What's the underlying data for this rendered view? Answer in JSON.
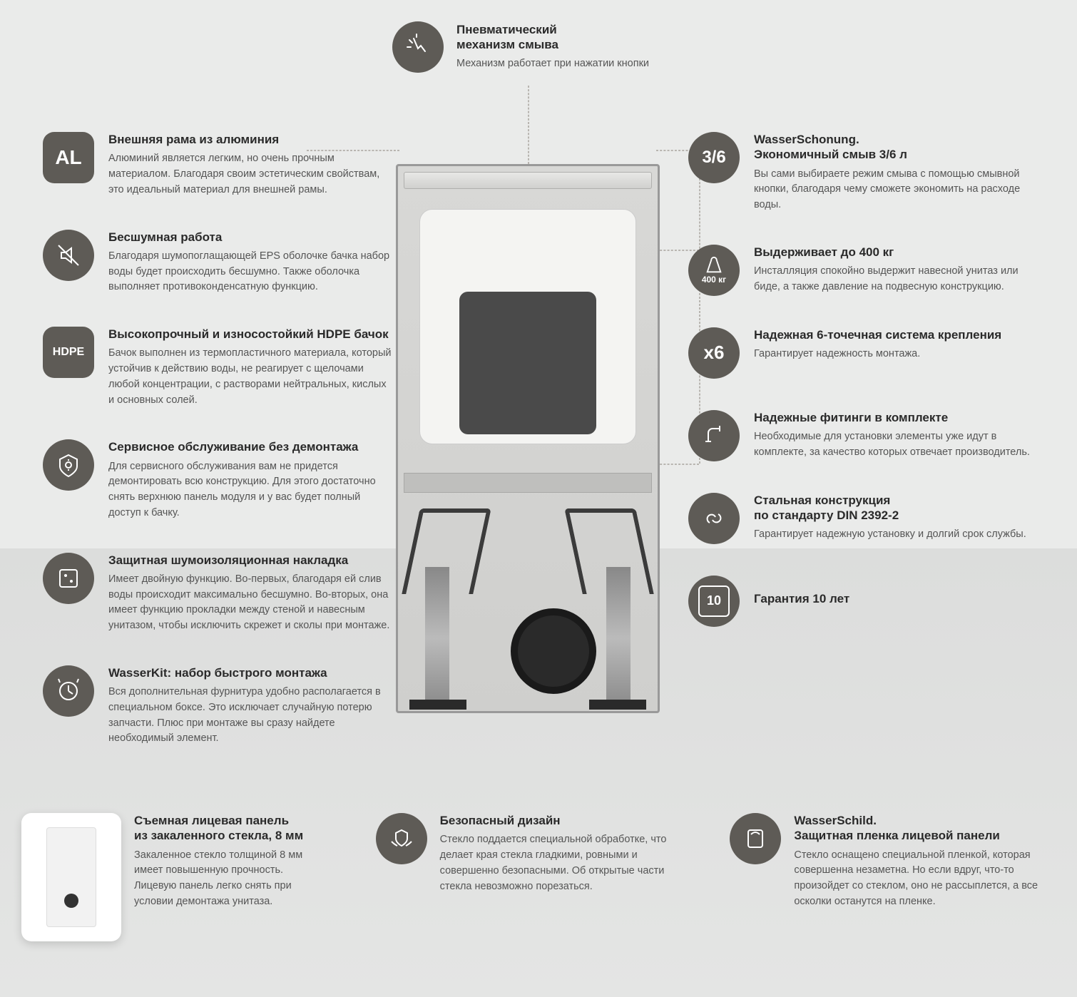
{
  "colors": {
    "icon_bg": "#5e5b56",
    "icon_fg": "#ffffff",
    "title": "#2a2a2a",
    "body": "#555555",
    "bg_top": "#eaebea",
    "bg_bottom": "#e4e5e4"
  },
  "top": {
    "title": "Пневматический\nмеханизм смыва",
    "body": "Механизм работает при нажатии кнопки",
    "icon": "click-icon"
  },
  "left": [
    {
      "icon": "AL",
      "icon_kind": "text-sq",
      "title": "Внешняя рама из алюминия",
      "body": "Алюминий является легким, но очень прочным материалом. Благодаря своим эстетическим свойствам, это идеальный материал для внешней рамы."
    },
    {
      "icon": "mute-icon",
      "icon_kind": "svg",
      "title": "Бесшумная работа",
      "body": "Благодаря шумопоглащающей EPS оболочке бачка набор воды будет происходить бесшумно. Также оболочка выполняет противоконденсатную функцию."
    },
    {
      "icon": "HDPE",
      "icon_kind": "text-sq",
      "title": "Высокопрочный и износостойкий HDPE бачок",
      "body": "Бачок выполнен из термопластичного материала, который устойчив к действию воды, не реагирует с щелочами любой концентрации, с растворами нейтральных, кислых и основных солей."
    },
    {
      "icon": "service-icon",
      "icon_kind": "svg",
      "title": "Сервисное обслуживание без демонтажа",
      "body": "Для сервисного обслуживания вам не придется демонтировать всю конструкцию. Для этого достаточно снять верхнюю панель модуля и у вас будет полный доступ к бачку."
    },
    {
      "icon": "pad-icon",
      "icon_kind": "svg",
      "title": "Защитная шумоизоляционная накладка",
      "body": "Имеет двойную функцию. Во-первых, благодаря ей слив воды происходит максимально бесшумно. Во-вторых, она имеет функцию прокладки между стеной и навесным унитазом, чтобы исключить скрежет и сколы при монтаже."
    },
    {
      "icon": "kit-icon",
      "icon_kind": "svg",
      "title": "WasserKit: набор быстрого монтажа",
      "body": "Вся дополнительная фурнитура удобно располагается в специальном боксе. Это исключает случайную потерю запчасти. Плюс при монтаже вы сразу найдете необходимый элемент."
    }
  ],
  "right": [
    {
      "icon": "3/6",
      "icon_kind": "text",
      "title": "WasserSchonung.\nЭкономичный смыв 3/6 л",
      "body": "Вы сами выбираете режим смыва с помощью смывной кнопки, благодаря чему сможете экономить на расходе воды."
    },
    {
      "icon": "weight-icon",
      "icon_label": "400 кг",
      "icon_kind": "svg-label",
      "title": "Выдерживает до 400 кг",
      "body": "Инсталляция спокойно выдержит навесной унитаз или биде, а также давление на подвесную конструкцию."
    },
    {
      "icon": "x6",
      "icon_kind": "text",
      "title": "Надежная 6-точечная система крепления",
      "body": "Гарантирует надежность монтажа."
    },
    {
      "icon": "fitting-icon",
      "icon_kind": "svg",
      "title": "Надежные фитинги в комплекте",
      "body": "Необходимые для установки элементы уже идут в комплекте, за качество которых отвечает производитель."
    },
    {
      "icon": "chain-icon",
      "icon_kind": "svg",
      "title": "Стальная конструкция\nпо стандарту DIN 2392-2",
      "body": "Гарантирует надежную установку и долгий срок службы."
    },
    {
      "icon": "10",
      "icon_kind": "guarantee",
      "title": "Гарантия 10 лет",
      "body": ""
    }
  ],
  "bottom": [
    {
      "icon_kind": "panel-thumb",
      "title": "Съемная лицевая панель\nиз закаленного стекла, 8 мм",
      "body": "Закаленное стекло толщиной 8 мм имеет повышенную прочность. Лицевую панель легко снять при условии демонтажа унитаза."
    },
    {
      "icon": "hands-shield-icon",
      "icon_kind": "svg-round",
      "title": "Безопасный дизайн",
      "body": "Стекло поддается специальной обработке, что делает края стекла гладкими, ровными и совершенно безопасными. Об открытые части стекла невозможно порезаться."
    },
    {
      "icon": "film-icon",
      "icon_kind": "svg-round",
      "title": "WasserSchild.\nЗащитная пленка лицевой панели",
      "body": "Стекло оснащено специальной пленкой, которая совершенна незаметна. Но если вдруг,  что-то произойдет со стеклом, оно не рассыплется, а все осколки останутся на пленке."
    }
  ]
}
